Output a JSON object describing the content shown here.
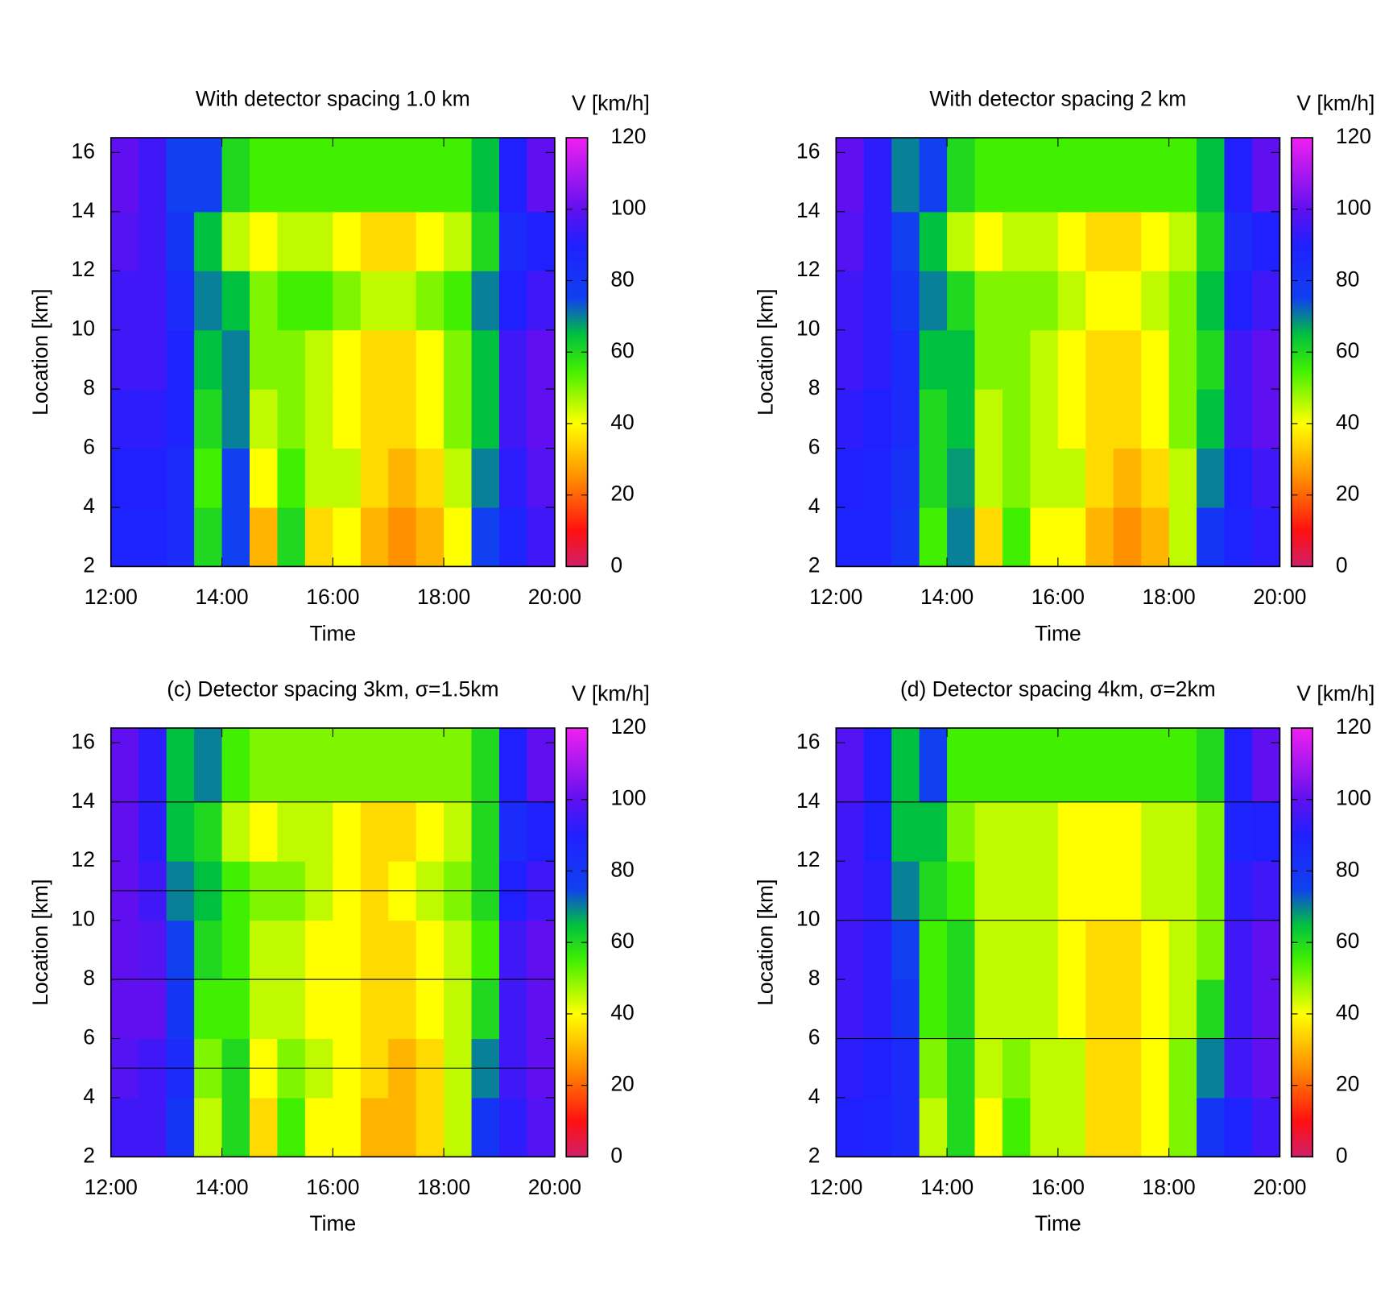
{
  "chart_data": [
    {
      "type": "heatmap",
      "title": "With detector spacing 1.0 km",
      "xlabel": "Time",
      "ylabel": "Location [km]",
      "colorbar_label": "V [km/h]",
      "x_bins": [
        12,
        12.5,
        13,
        13.5,
        14,
        14.5,
        15,
        15.5,
        16,
        16.5,
        17,
        17.5,
        18,
        18.5,
        19,
        19.5,
        20
      ],
      "y_bins": [
        2,
        4,
        6,
        8,
        10,
        12,
        14,
        16.5
      ],
      "z": [
        [
          88,
          88,
          85,
          60,
          75,
          30,
          60,
          35,
          40,
          30,
          25,
          30,
          40,
          75,
          88,
          95
        ],
        [
          90,
          90,
          85,
          55,
          75,
          40,
          55,
          45,
          45,
          35,
          30,
          35,
          45,
          70,
          92,
          98
        ],
        [
          92,
          92,
          88,
          60,
          70,
          45,
          50,
          45,
          40,
          35,
          35,
          40,
          50,
          65,
          95,
          100
        ],
        [
          95,
          95,
          88,
          65,
          70,
          50,
          50,
          45,
          40,
          35,
          35,
          40,
          50,
          65,
          95,
          100
        ],
        [
          95,
          95,
          85,
          70,
          65,
          50,
          55,
          55,
          50,
          45,
          45,
          50,
          55,
          70,
          90,
          95
        ],
        [
          98,
          95,
          80,
          65,
          45,
          40,
          45,
          45,
          40,
          35,
          35,
          40,
          45,
          60,
          85,
          90
        ],
        [
          100,
          95,
          75,
          75,
          60,
          55,
          55,
          55,
          55,
          55,
          55,
          55,
          55,
          65,
          90,
          100
        ]
      ],
      "xlim": [
        12,
        20
      ],
      "xticks": [
        {
          "value": 12,
          "label": "12:00"
        },
        {
          "value": 14,
          "label": "14:00"
        },
        {
          "value": 16,
          "label": "16:00"
        },
        {
          "value": 18,
          "label": "18:00"
        },
        {
          "value": 20,
          "label": "20:00"
        }
      ],
      "ylim": [
        2,
        16.5
      ],
      "yticks": [
        2,
        4,
        6,
        8,
        10,
        12,
        14,
        16
      ],
      "zlim": [
        0,
        120
      ],
      "zticks": [
        0,
        20,
        40,
        60,
        80,
        100,
        120
      ],
      "colormap": [
        {
          "value": 0,
          "color": "#d0206a"
        },
        {
          "value": 10,
          "color": "#ff1010"
        },
        {
          "value": 25,
          "color": "#ff9000"
        },
        {
          "value": 40,
          "color": "#ffff00"
        },
        {
          "value": 55,
          "color": "#40f000"
        },
        {
          "value": 65,
          "color": "#00c040"
        },
        {
          "value": 75,
          "color": "#1040f0"
        },
        {
          "value": 90,
          "color": "#2020ff"
        },
        {
          "value": 100,
          "color": "#6010f0"
        },
        {
          "value": 120,
          "color": "#f020f0"
        }
      ]
    },
    {
      "type": "heatmap",
      "title": "With detector spacing 2 km",
      "xlabel": "Time",
      "ylabel": "Location [km]",
      "colorbar_label": "V [km/h]",
      "x_bins": [
        12,
        12.5,
        13,
        13.5,
        14,
        14.5,
        15,
        15.5,
        16,
        16.5,
        17,
        17.5,
        18,
        18.5,
        19,
        19.5,
        20
      ],
      "y_bins": [
        2,
        4,
        6,
        8,
        10,
        12,
        14,
        16.5
      ],
      "z": [
        [
          88,
          88,
          80,
          55,
          70,
          35,
          55,
          40,
          40,
          30,
          25,
          30,
          45,
          80,
          88,
          92
        ],
        [
          90,
          88,
          82,
          60,
          68,
          45,
          50,
          45,
          45,
          35,
          30,
          35,
          45,
          70,
          90,
          95
        ],
        [
          92,
          90,
          85,
          60,
          65,
          45,
          50,
          45,
          40,
          35,
          35,
          40,
          50,
          65,
          95,
          100
        ],
        [
          95,
          92,
          85,
          65,
          65,
          50,
          50,
          45,
          40,
          35,
          35,
          40,
          50,
          60,
          95,
          100
        ],
        [
          95,
          92,
          80,
          70,
          60,
          50,
          50,
          50,
          45,
          40,
          40,
          45,
          50,
          65,
          90,
          95
        ],
        [
          98,
          92,
          75,
          65,
          45,
          40,
          45,
          45,
          40,
          35,
          35,
          40,
          45,
          60,
          85,
          90
        ],
        [
          100,
          92,
          70,
          75,
          60,
          55,
          55,
          55,
          55,
          55,
          55,
          55,
          55,
          65,
          90,
          100
        ]
      ],
      "xlim": [
        12,
        20
      ],
      "xticks": [
        {
          "value": 12,
          "label": "12:00"
        },
        {
          "value": 14,
          "label": "14:00"
        },
        {
          "value": 16,
          "label": "16:00"
        },
        {
          "value": 18,
          "label": "18:00"
        },
        {
          "value": 20,
          "label": "20:00"
        }
      ],
      "ylim": [
        2,
        16.5
      ],
      "yticks": [
        2,
        4,
        6,
        8,
        10,
        12,
        14,
        16
      ],
      "zlim": [
        0,
        120
      ],
      "zticks": [
        0,
        20,
        40,
        60,
        80,
        100,
        120
      ],
      "colormap": [
        {
          "value": 0,
          "color": "#d0206a"
        },
        {
          "value": 10,
          "color": "#ff1010"
        },
        {
          "value": 25,
          "color": "#ff9000"
        },
        {
          "value": 40,
          "color": "#ffff00"
        },
        {
          "value": 55,
          "color": "#40f000"
        },
        {
          "value": 65,
          "color": "#00c040"
        },
        {
          "value": 75,
          "color": "#1040f0"
        },
        {
          "value": 90,
          "color": "#2020ff"
        },
        {
          "value": 100,
          "color": "#6010f0"
        },
        {
          "value": 120,
          "color": "#f020f0"
        }
      ]
    },
    {
      "type": "heatmap",
      "title": "(c) Detector spacing 3km, σ=1.5km",
      "xlabel": "Time",
      "ylabel": "Location [km]",
      "colorbar_label": "V [km/h]",
      "x_bins": [
        12,
        12.5,
        13,
        13.5,
        14,
        14.5,
        15,
        15.5,
        16,
        16.5,
        17,
        17.5,
        18,
        18.5,
        19,
        19.5,
        20
      ],
      "y_bins": [
        2,
        4,
        6,
        8,
        10,
        12,
        14,
        16.5
      ],
      "z": [
        [
          95,
          95,
          80,
          45,
          60,
          35,
          55,
          40,
          40,
          30,
          30,
          35,
          45,
          80,
          92,
          98
        ],
        [
          98,
          95,
          85,
          50,
          60,
          40,
          50,
          45,
          40,
          35,
          30,
          35,
          45,
          70,
          95,
          100
        ],
        [
          100,
          100,
          80,
          55,
          55,
          45,
          45,
          40,
          40,
          35,
          35,
          40,
          45,
          60,
          95,
          100
        ],
        [
          100,
          98,
          75,
          60,
          55,
          45,
          45,
          40,
          40,
          35,
          35,
          40,
          45,
          55,
          95,
          100
        ],
        [
          100,
          95,
          70,
          65,
          55,
          50,
          50,
          45,
          40,
          35,
          40,
          45,
          50,
          60,
          90,
          95
        ],
        [
          100,
          92,
          65,
          60,
          45,
          40,
          45,
          45,
          40,
          35,
          35,
          40,
          45,
          60,
          85,
          90
        ],
        [
          100,
          92,
          65,
          70,
          55,
          50,
          50,
          50,
          50,
          50,
          50,
          50,
          50,
          60,
          90,
          100
        ]
      ],
      "xlim": [
        12,
        20
      ],
      "xticks": [
        {
          "value": 12,
          "label": "12:00"
        },
        {
          "value": 14,
          "label": "14:00"
        },
        {
          "value": 16,
          "label": "16:00"
        },
        {
          "value": 18,
          "label": "18:00"
        },
        {
          "value": 20,
          "label": "20:00"
        }
      ],
      "ylim": [
        2,
        16.5
      ],
      "yticks": [
        2,
        4,
        6,
        8,
        10,
        12,
        14,
        16
      ],
      "zlim": [
        0,
        120
      ],
      "zticks": [
        0,
        20,
        40,
        60,
        80,
        100,
        120
      ],
      "hlines": [
        5,
        8,
        11,
        14
      ],
      "colormap": [
        {
          "value": 0,
          "color": "#d0206a"
        },
        {
          "value": 10,
          "color": "#ff1010"
        },
        {
          "value": 25,
          "color": "#ff9000"
        },
        {
          "value": 40,
          "color": "#ffff00"
        },
        {
          "value": 55,
          "color": "#40f000"
        },
        {
          "value": 65,
          "color": "#00c040"
        },
        {
          "value": 75,
          "color": "#1040f0"
        },
        {
          "value": 90,
          "color": "#2020ff"
        },
        {
          "value": 100,
          "color": "#6010f0"
        },
        {
          "value": 120,
          "color": "#f020f0"
        }
      ]
    },
    {
      "type": "heatmap",
      "title": "(d) Detector spacing 4km, σ=2km",
      "xlabel": "Time",
      "ylabel": "Location [km]",
      "colorbar_label": "V [km/h]",
      "x_bins": [
        12,
        12.5,
        13,
        13.5,
        14,
        14.5,
        15,
        15.5,
        16,
        16.5,
        17,
        17.5,
        18,
        18.5,
        19,
        19.5,
        20
      ],
      "y_bins": [
        2,
        4,
        6,
        8,
        10,
        12,
        14,
        16.5
      ],
      "z": [
        [
          90,
          88,
          85,
          45,
          60,
          40,
          55,
          45,
          45,
          35,
          35,
          40,
          50,
          80,
          88,
          95
        ],
        [
          92,
          90,
          85,
          50,
          60,
          45,
          50,
          45,
          45,
          35,
          35,
          40,
          50,
          70,
          95,
          100
        ],
        [
          95,
          92,
          80,
          55,
          60,
          45,
          45,
          45,
          40,
          35,
          35,
          40,
          45,
          60,
          95,
          100
        ],
        [
          95,
          92,
          75,
          55,
          60,
          45,
          45,
          45,
          40,
          35,
          35,
          40,
          45,
          50,
          95,
          100
        ],
        [
          95,
          92,
          70,
          60,
          55,
          45,
          45,
          45,
          40,
          40,
          40,
          45,
          45,
          50,
          92,
          95
        ],
        [
          95,
          90,
          65,
          65,
          50,
          45,
          45,
          45,
          40,
          40,
          40,
          45,
          45,
          50,
          88,
          90
        ],
        [
          98,
          90,
          65,
          75,
          55,
          55,
          55,
          55,
          55,
          55,
          55,
          55,
          55,
          60,
          90,
          100
        ]
      ],
      "xlim": [
        12,
        20
      ],
      "xticks": [
        {
          "value": 12,
          "label": "12:00"
        },
        {
          "value": 14,
          "label": "14:00"
        },
        {
          "value": 16,
          "label": "16:00"
        },
        {
          "value": 18,
          "label": "18:00"
        },
        {
          "value": 20,
          "label": "20:00"
        }
      ],
      "ylim": [
        2,
        16.5
      ],
      "yticks": [
        2,
        4,
        6,
        8,
        10,
        12,
        14,
        16
      ],
      "zlim": [
        0,
        120
      ],
      "zticks": [
        0,
        20,
        40,
        60,
        80,
        100,
        120
      ],
      "hlines": [
        6,
        10,
        14
      ],
      "colormap": [
        {
          "value": 0,
          "color": "#d0206a"
        },
        {
          "value": 10,
          "color": "#ff1010"
        },
        {
          "value": 25,
          "color": "#ff9000"
        },
        {
          "value": 40,
          "color": "#ffff00"
        },
        {
          "value": 55,
          "color": "#40f000"
        },
        {
          "value": 65,
          "color": "#00c040"
        },
        {
          "value": 75,
          "color": "#1040f0"
        },
        {
          "value": 90,
          "color": "#2020ff"
        },
        {
          "value": 100,
          "color": "#6010f0"
        },
        {
          "value": 120,
          "color": "#f020f0"
        }
      ]
    }
  ]
}
